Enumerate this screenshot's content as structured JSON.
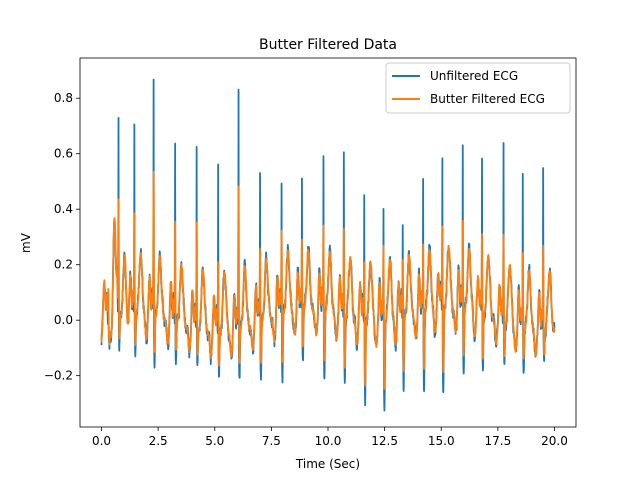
{
  "chart_data": {
    "type": "line",
    "title": "Butter Filtered Data",
    "xlabel": "Time (Sec)",
    "ylabel": "mV",
    "xlim": [
      -0.95,
      20.95
    ],
    "ylim": [
      -0.385,
      0.945
    ],
    "xticks": [
      0.0,
      2.5,
      5.0,
      7.5,
      10.0,
      12.5,
      15.0,
      17.5,
      20.0
    ],
    "xtick_labels": [
      "0.0",
      "2.5",
      "5.0",
      "7.5",
      "10.0",
      "12.5",
      "15.0",
      "17.5",
      "20.0"
    ],
    "yticks": [
      -0.2,
      0.0,
      0.2,
      0.4,
      0.6,
      0.8
    ],
    "ytick_labels": [
      "−0.2",
      "0.0",
      "0.2",
      "0.4",
      "0.6",
      "0.8"
    ],
    "grid": false,
    "legend_position": "top-right",
    "beats": {
      "r_times": [
        0.3,
        0.75,
        1.45,
        2.3,
        3.25,
        4.2,
        5.15,
        6.05,
        7.0,
        7.95,
        8.85,
        9.8,
        10.7,
        11.6,
        12.45,
        13.3,
        14.2,
        15.05,
        15.95,
        16.8,
        17.75,
        18.6,
        19.5
      ],
      "unfiltered_peaks": [
        0.12,
        0.73,
        0.69,
        0.89,
        0.68,
        0.69,
        0.66,
        0.88,
        0.56,
        0.5,
        0.48,
        0.57,
        0.61,
        0.52,
        0.44,
        0.39,
        0.5,
        0.6,
        0.64,
        0.59,
        0.66,
        0.59,
        0.61
      ],
      "filtered_peaks": [
        0.12,
        0.42,
        0.38,
        0.54,
        0.38,
        0.4,
        0.28,
        0.53,
        0.28,
        0.32,
        0.27,
        0.33,
        0.34,
        0.25,
        0.31,
        0.24,
        0.27,
        0.33,
        0.35,
        0.31,
        0.33,
        0.3,
        0.33
      ],
      "troughs": [
        -0.1,
        -0.12,
        -0.14,
        -0.16,
        -0.13,
        -0.12,
        -0.15,
        -0.17,
        -0.2,
        -0.22,
        -0.18,
        -0.24,
        -0.23,
        -0.3,
        -0.33,
        -0.25,
        -0.27,
        -0.3,
        -0.23,
        -0.2,
        -0.15,
        -0.14,
        -0.1
      ]
    },
    "series": [
      {
        "name": "Unfiltered ECG",
        "color": "#1f77b4"
      },
      {
        "name": "Butter Filtered ECG",
        "color": "#ff7f0e"
      }
    ]
  }
}
